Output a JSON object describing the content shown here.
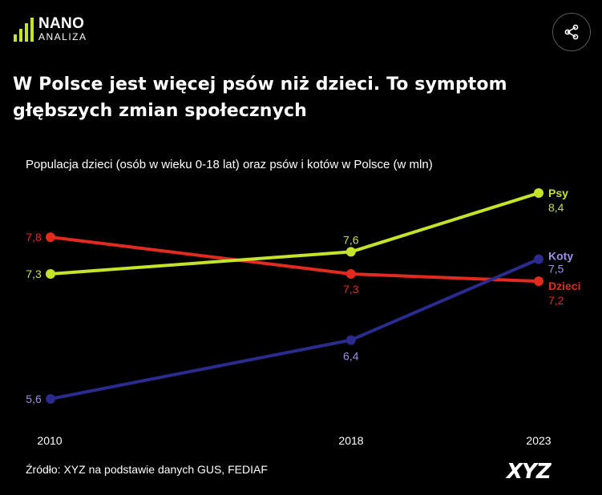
{
  "header": {
    "logo_line1": "NANO",
    "logo_line2": "ANALIZA",
    "share_icon": "share-icon",
    "logo_bar_color": "#c4e32a"
  },
  "headline": "W Polsce jest więcej psów niż dzieci. To symptom głębszych zmian społecznych",
  "footer": {
    "source": "Źródło: XYZ na podstawie danych GUS, FEDIAF",
    "brand": "XYZ"
  },
  "chart_data": {
    "type": "line",
    "title": "Populacja dzieci (osób w wieku 0-18 lat) oraz psów i kotów w Polsce (w mln)",
    "x": [
      "2010",
      "2018",
      "2023"
    ],
    "x_numeric": [
      2010,
      2018,
      2023
    ],
    "grid": false,
    "legend": "inline-labels-right",
    "series": [
      {
        "name": "Psy",
        "values": [
          7.3,
          7.6,
          8.4
        ],
        "labels": [
          "7,3",
          "7,6",
          "8,4"
        ],
        "color": "#c4e32a"
      },
      {
        "name": "Dzieci",
        "values": [
          7.8,
          7.3,
          7.2
        ],
        "labels": [
          "7,8",
          "7,3",
          "7,2"
        ],
        "color": "#e32a1e"
      },
      {
        "name": "Koty",
        "values": [
          5.6,
          6.4,
          7.5
        ],
        "labels": [
          "5,6",
          "6,4",
          "7,5"
        ],
        "color": "#2b2b8f",
        "label_color": "#9f8fe6"
      }
    ]
  }
}
